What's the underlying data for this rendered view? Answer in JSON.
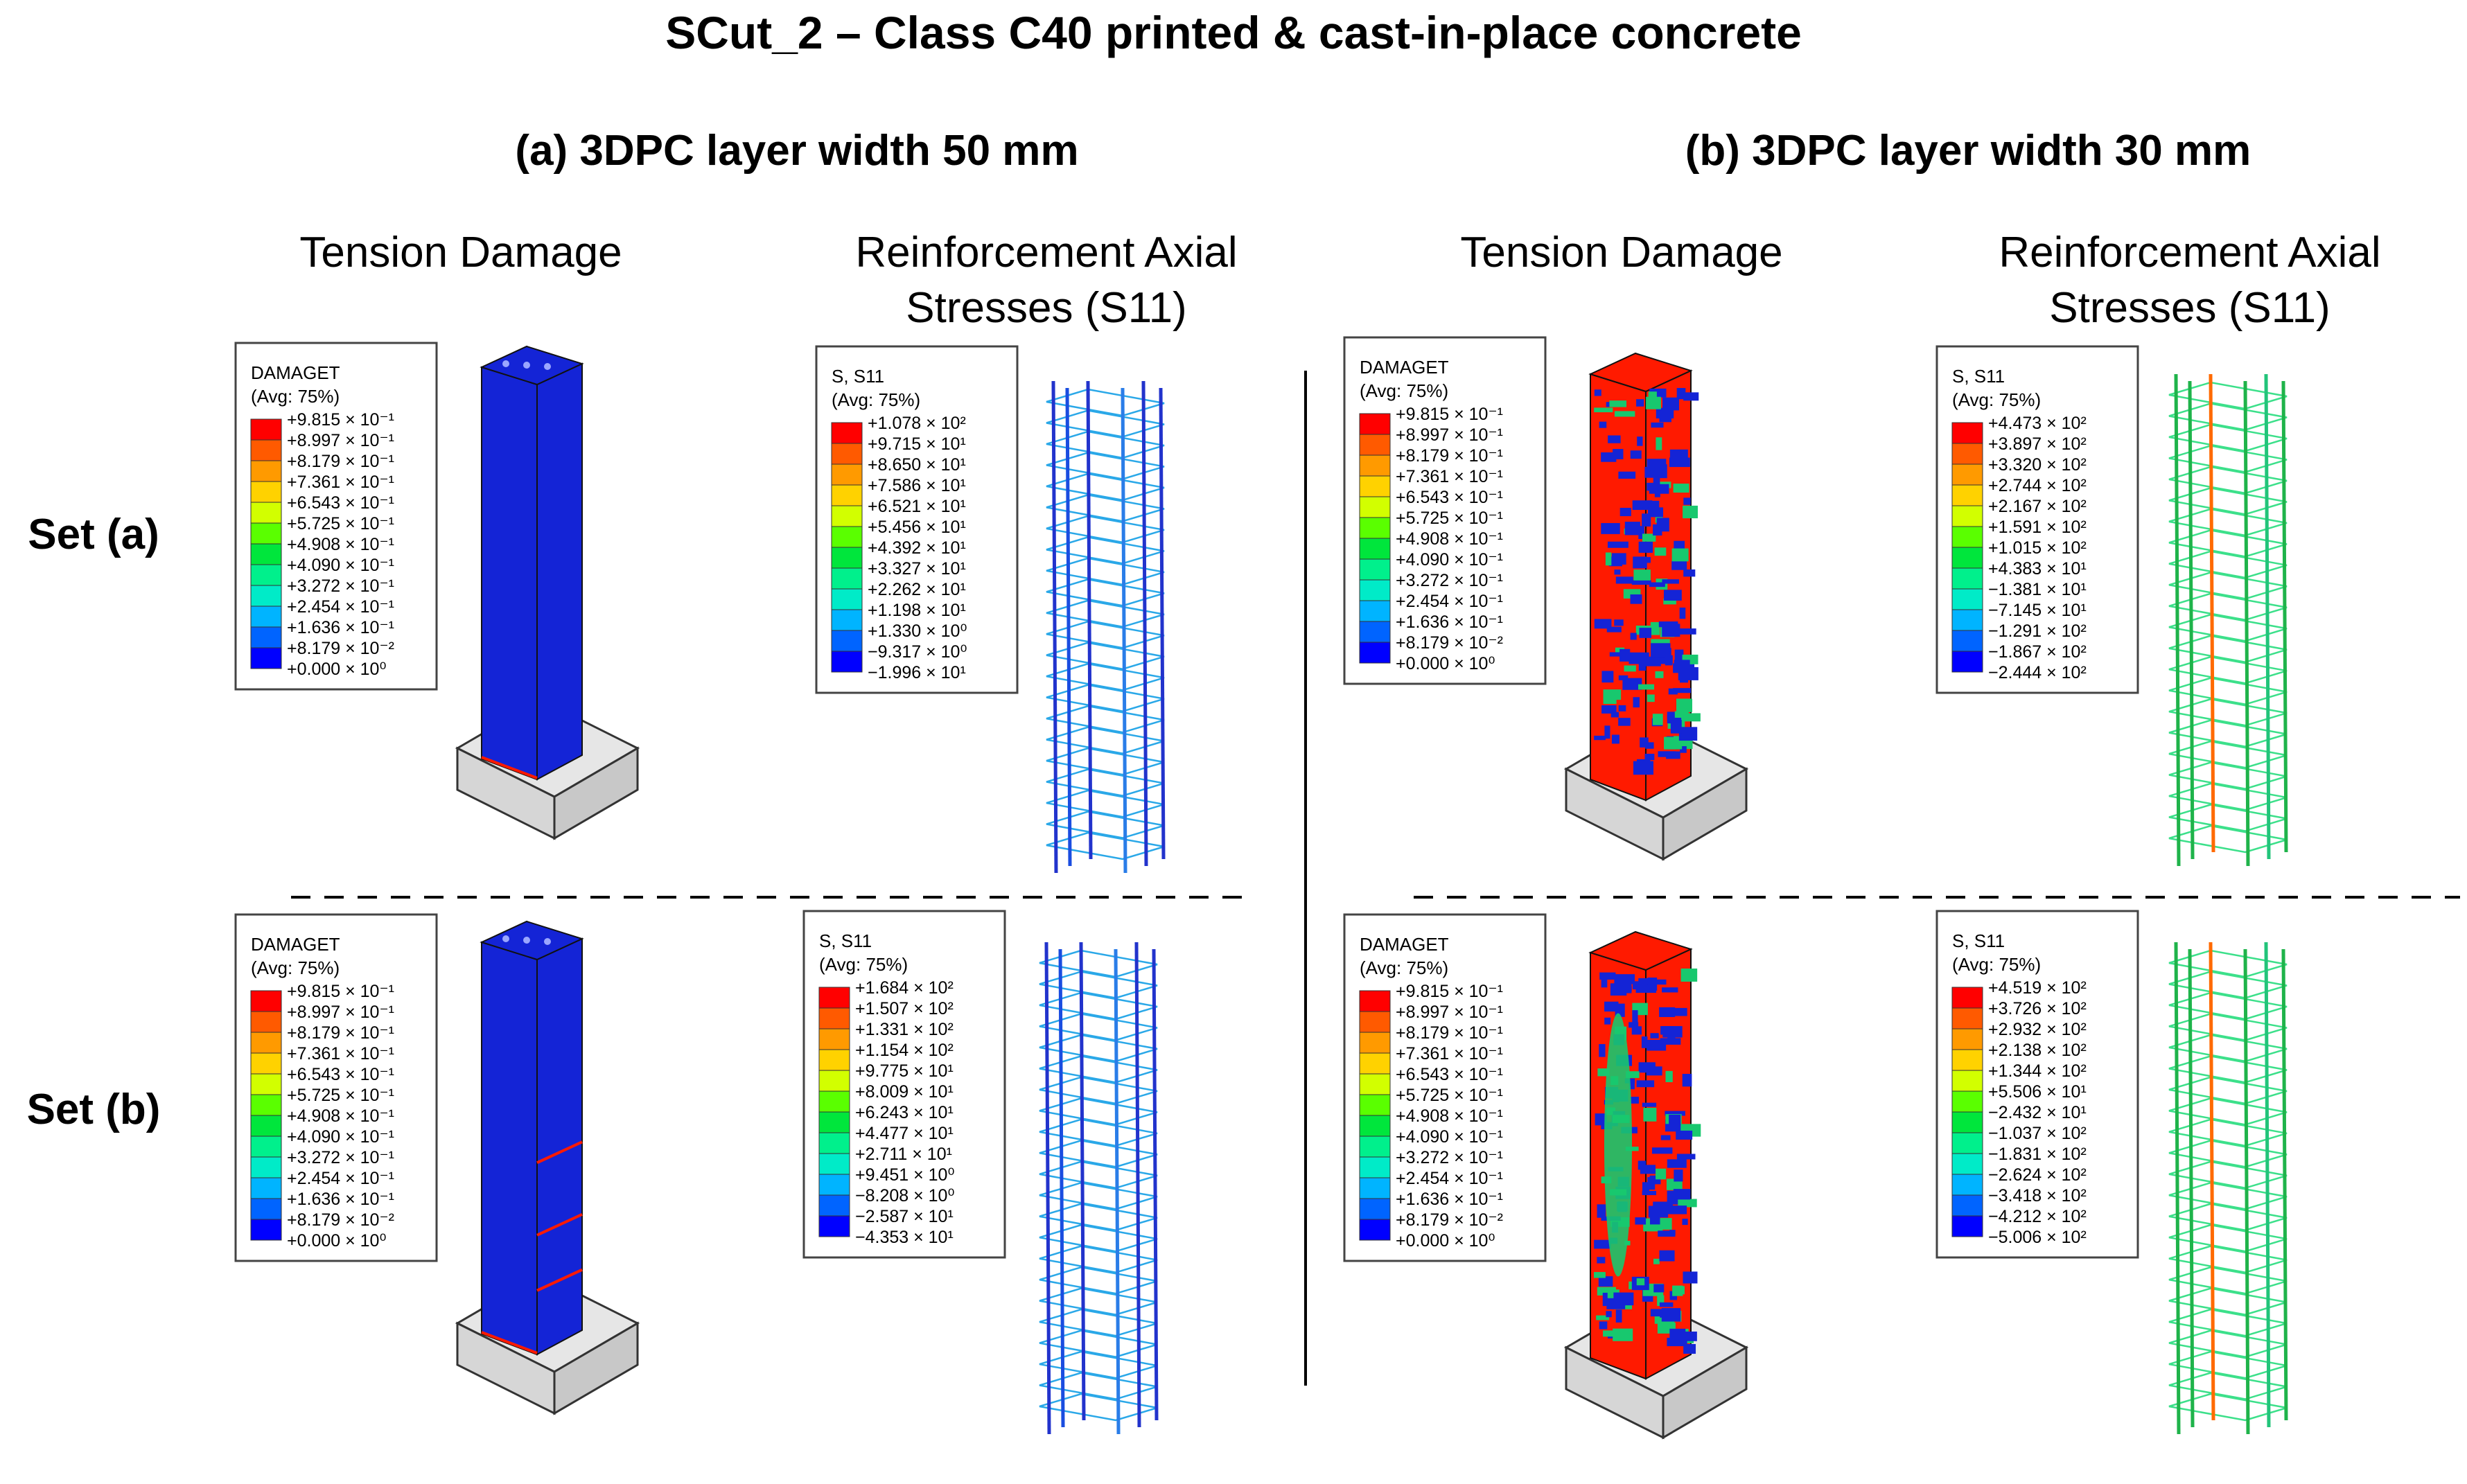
{
  "title": "SCut_2 – Class C40 printed & cast-in-place concrete",
  "groups": [
    {
      "heading": "(a) 3DPC layer width 50 mm"
    },
    {
      "heading": "(b) 3DPC layer width 30 mm"
    }
  ],
  "column_headers": {
    "tension": "Tension Damage",
    "reinforcement_line1": "Reinforcement Axial",
    "reinforcement_line2": "Stresses (S11)"
  },
  "rows": [
    {
      "label": "Set (a)"
    },
    {
      "label": "Set (b)"
    }
  ],
  "legend_colors": [
    "#ff0000",
    "#ff5a00",
    "#ff9a00",
    "#ffd200",
    "#d2ff00",
    "#5aff00",
    "#00e63c",
    "#00f08c",
    "#00ebc8",
    "#00b4ff",
    "#0064ff",
    "#0000ff"
  ],
  "damage_colors": {
    "low": "#1424d6",
    "high": "#ff1a00",
    "mid": "#18c86e"
  },
  "panels": [
    {
      "legend": {
        "title": "DAMAGET",
        "avg": "(Avg: 75%)",
        "values": [
          "+9.815 × 10⁻¹",
          "+8.997 × 10⁻¹",
          "+8.179 × 10⁻¹",
          "+7.361 × 10⁻¹",
          "+6.543 × 10⁻¹",
          "+5.725 × 10⁻¹",
          "+4.908 × 10⁻¹",
          "+4.090 × 10⁻¹",
          "+3.272 × 10⁻¹",
          "+2.454 × 10⁻¹",
          "+1.636 × 10⁻¹",
          "+8.179 × 10⁻²",
          "+0.000 × 10⁰"
        ]
      }
    },
    {
      "legend": {
        "title": "S, S11",
        "avg": "(Avg: 75%)",
        "values": [
          "+1.078 × 10²",
          "+9.715 × 10¹",
          "+8.650 × 10¹",
          "+7.586 × 10¹",
          "+6.521 × 10¹",
          "+5.456 × 10¹",
          "+4.392 × 10¹",
          "+3.327 × 10¹",
          "+2.262 × 10¹",
          "+1.198 × 10¹",
          "+1.330 × 10⁰",
          "−9.317 × 10⁰",
          "−1.996 × 10¹"
        ]
      }
    },
    {
      "legend": {
        "title": "DAMAGET",
        "avg": "(Avg: 75%)",
        "values": [
          "+9.815 × 10⁻¹",
          "+8.997 × 10⁻¹",
          "+8.179 × 10⁻¹",
          "+7.361 × 10⁻¹",
          "+6.543 × 10⁻¹",
          "+5.725 × 10⁻¹",
          "+4.908 × 10⁻¹",
          "+4.090 × 10⁻¹",
          "+3.272 × 10⁻¹",
          "+2.454 × 10⁻¹",
          "+1.636 × 10⁻¹",
          "+8.179 × 10⁻²",
          "+0.000 × 10⁰"
        ]
      }
    },
    {
      "legend": {
        "title": "S, S11",
        "avg": "(Avg: 75%)",
        "values": [
          "+4.473 × 10²",
          "+3.897 × 10²",
          "+3.320 × 10²",
          "+2.744 × 10²",
          "+2.167 × 10²",
          "+1.591 × 10²",
          "+1.015 × 10²",
          "+4.383 × 10¹",
          "−1.381 × 10¹",
          "−7.145 × 10¹",
          "−1.291 × 10²",
          "−1.867 × 10²",
          "−2.444 × 10²"
        ]
      }
    },
    {
      "legend": {
        "title": "DAMAGET",
        "avg": "(Avg: 75%)",
        "values": [
          "+9.815 × 10⁻¹",
          "+8.997 × 10⁻¹",
          "+8.179 × 10⁻¹",
          "+7.361 × 10⁻¹",
          "+6.543 × 10⁻¹",
          "+5.725 × 10⁻¹",
          "+4.908 × 10⁻¹",
          "+4.090 × 10⁻¹",
          "+3.272 × 10⁻¹",
          "+2.454 × 10⁻¹",
          "+1.636 × 10⁻¹",
          "+8.179 × 10⁻²",
          "+0.000 × 10⁰"
        ]
      }
    },
    {
      "legend": {
        "title": "S, S11",
        "avg": "(Avg: 75%)",
        "values": [
          "+1.684 × 10²",
          "+1.507 × 10²",
          "+1.331 × 10²",
          "+1.154 × 10²",
          "+9.775 × 10¹",
          "+8.009 × 10¹",
          "+6.243 × 10¹",
          "+4.477 × 10¹",
          "+2.711 × 10¹",
          "+9.451 × 10⁰",
          "−8.208 × 10⁰",
          "−2.587 × 10¹",
          "−4.353 × 10¹"
        ]
      }
    },
    {
      "legend": {
        "title": "DAMAGET",
        "avg": "(Avg: 75%)",
        "values": [
          "+9.815 × 10⁻¹",
          "+8.997 × 10⁻¹",
          "+8.179 × 10⁻¹",
          "+7.361 × 10⁻¹",
          "+6.543 × 10⁻¹",
          "+5.725 × 10⁻¹",
          "+4.908 × 10⁻¹",
          "+4.090 × 10⁻¹",
          "+3.272 × 10⁻¹",
          "+2.454 × 10⁻¹",
          "+1.636 × 10⁻¹",
          "+8.179 × 10⁻²",
          "+0.000 × 10⁰"
        ]
      }
    },
    {
      "legend": {
        "title": "S, S11",
        "avg": "(Avg: 75%)",
        "values": [
          "+4.519 × 10²",
          "+3.726 × 10²",
          "+2.932 × 10²",
          "+2.138 × 10²",
          "+1.344 × 10²",
          "+5.506 × 10¹",
          "−2.432 × 10¹",
          "−1.037 × 10²",
          "−1.831 × 10²",
          "−2.624 × 10²",
          "−3.418 × 10²",
          "−4.212 × 10²",
          "−5.006 × 10²"
        ]
      }
    }
  ]
}
